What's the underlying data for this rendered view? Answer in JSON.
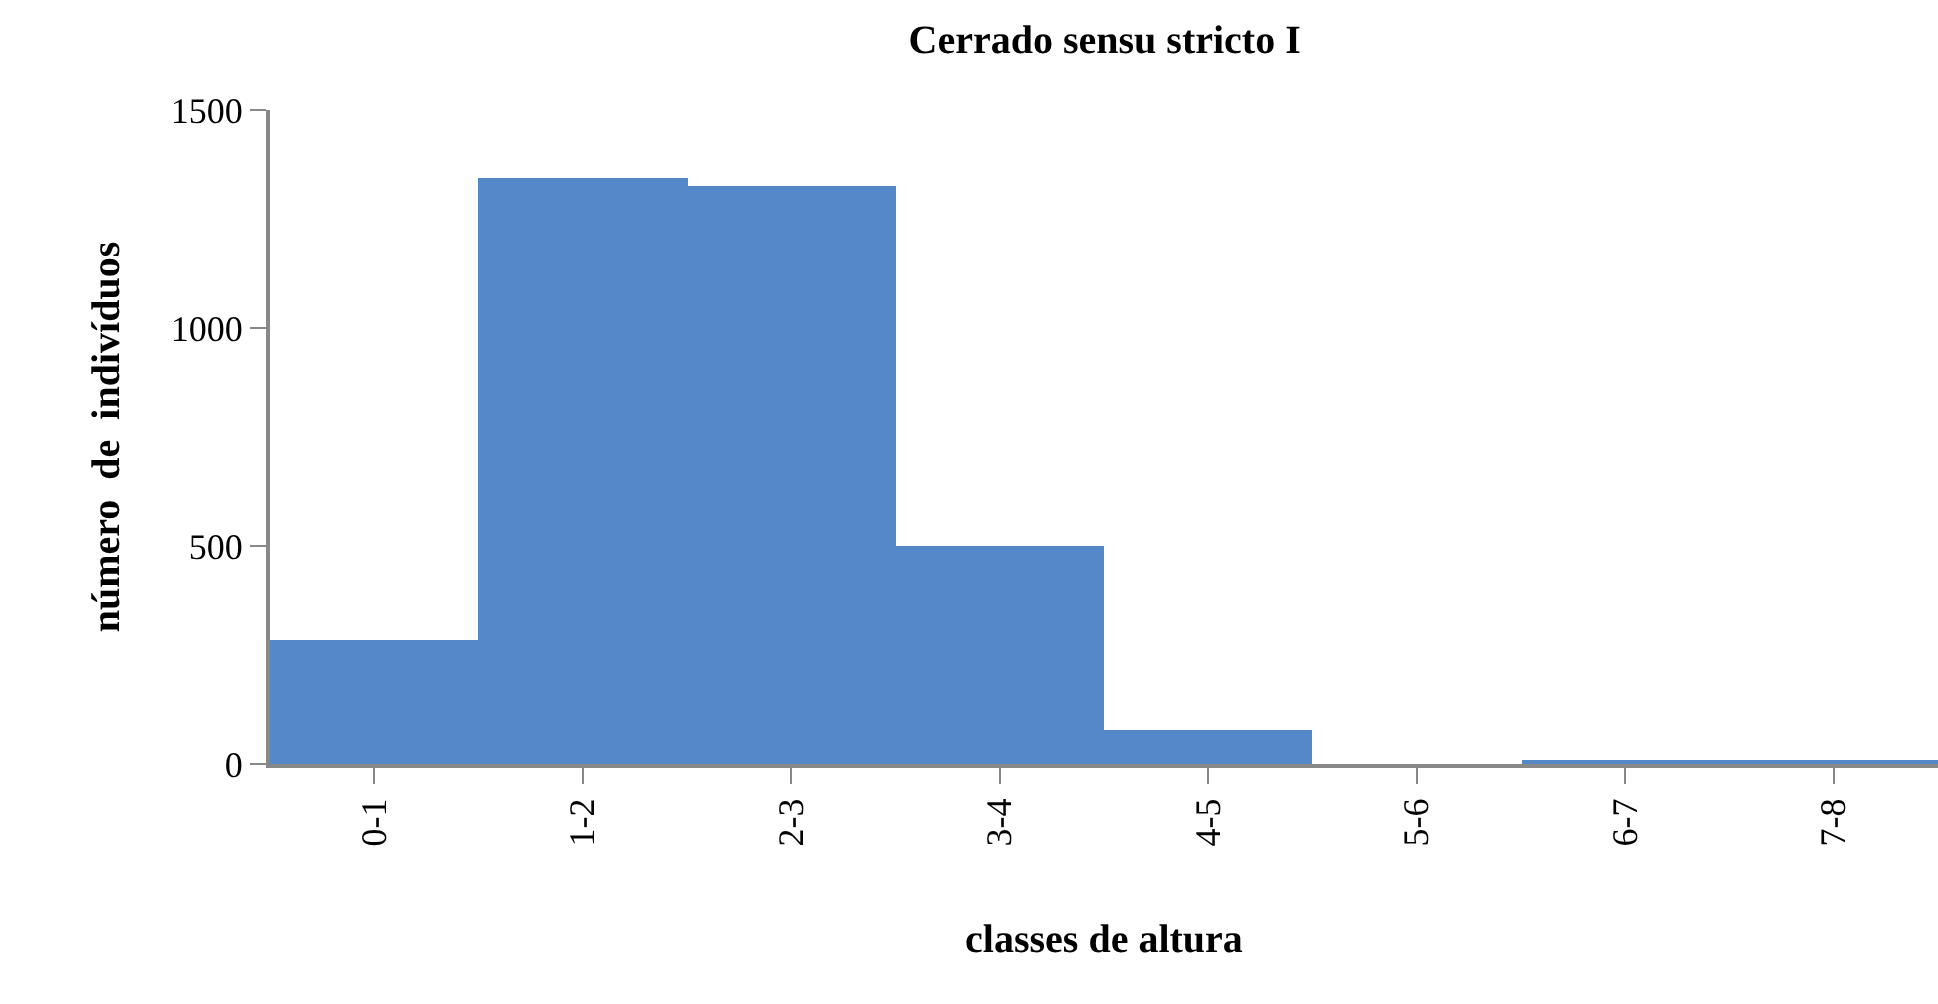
{
  "chart_data": {
    "type": "bar",
    "title": "Cerrado sensu stricto I",
    "xlabel": "classes de altura",
    "ylabel": "número  de  indivíduos",
    "categories": [
      "0-1",
      "1-2",
      "2-3",
      "3-4",
      "4-5",
      "5-6",
      "6-7",
      "7-8"
    ],
    "values": [
      285,
      1345,
      1325,
      500,
      80,
      0,
      5,
      5
    ],
    "color": "#5588c8",
    "ylim": [
      0,
      1500
    ],
    "yticks": [
      0,
      500,
      1000,
      1500
    ],
    "grid": false,
    "legend": false
  }
}
